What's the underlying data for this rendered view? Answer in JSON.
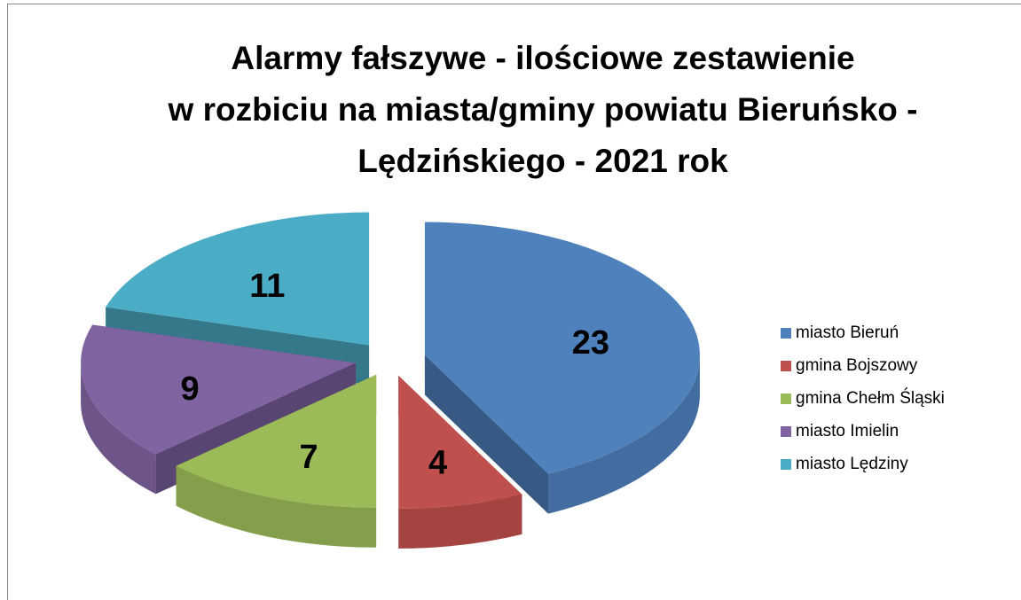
{
  "chart_data": {
    "type": "pie3d",
    "title": [
      "Alarmy fałszywe - ilościowe zestawienie",
      "w rozbiciu na miasta/gminy powiatu Bieruńsko -",
      "Lędzińskiego - 2021 rok"
    ],
    "categories": [
      "miasto Bieruń",
      "gmina Bojszowy",
      "gmina Chełm Śląski",
      "miasto Imielin",
      "miasto Lędziny"
    ],
    "values": [
      23,
      4,
      7,
      9,
      11
    ],
    "colors": [
      "#4f81bd",
      "#c0504d",
      "#9bbb59",
      "#8064a2",
      "#4bacc6"
    ],
    "legend": "right"
  }
}
